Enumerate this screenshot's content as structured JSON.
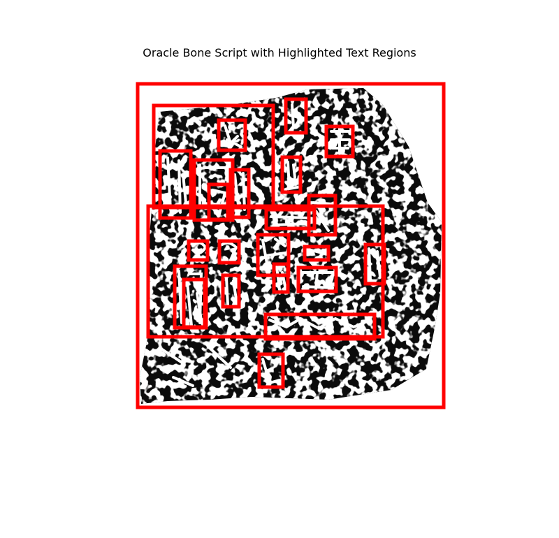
{
  "title": "Oracle Bone Script with Highlighted Text Regions",
  "colors": {
    "background": "#ffffff",
    "bone": "#0b0b0b",
    "highlight_box": "#ff0000"
  },
  "highlighted_region_count": 27
}
